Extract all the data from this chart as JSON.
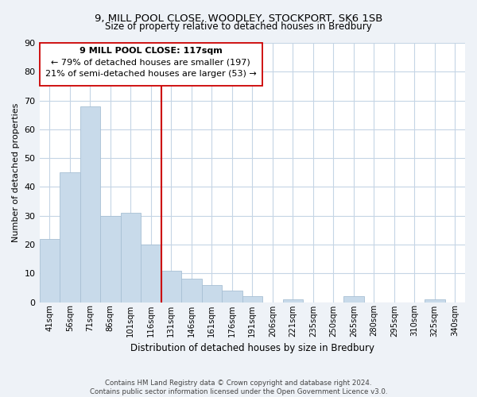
{
  "title": "9, MILL POOL CLOSE, WOODLEY, STOCKPORT, SK6 1SB",
  "subtitle": "Size of property relative to detached houses in Bredbury",
  "xlabel": "Distribution of detached houses by size in Bredbury",
  "ylabel": "Number of detached properties",
  "bar_labels": [
    "41sqm",
    "56sqm",
    "71sqm",
    "86sqm",
    "101sqm",
    "116sqm",
    "131sqm",
    "146sqm",
    "161sqm",
    "176sqm",
    "191sqm",
    "206sqm",
    "221sqm",
    "235sqm",
    "250sqm",
    "265sqm",
    "280sqm",
    "295sqm",
    "310sqm",
    "325sqm",
    "340sqm"
  ],
  "bar_values": [
    22,
    45,
    68,
    30,
    31,
    20,
    11,
    8,
    6,
    4,
    2,
    0,
    1,
    0,
    0,
    2,
    0,
    0,
    0,
    1,
    0
  ],
  "bar_color": "#c8daea",
  "bar_edge_color": "#a8c0d4",
  "vline_x": 5.5,
  "vline_color": "#cc0000",
  "ylim": [
    0,
    90
  ],
  "yticks": [
    0,
    10,
    20,
    30,
    40,
    50,
    60,
    70,
    80,
    90
  ],
  "annotation_box_text1": "9 MILL POOL CLOSE: 117sqm",
  "annotation_box_text2": "← 79% of detached houses are smaller (197)",
  "annotation_box_text3": "21% of semi-detached houses are larger (53) →",
  "footer_text": "Contains HM Land Registry data © Crown copyright and database right 2024.\nContains public sector information licensed under the Open Government Licence v3.0.",
  "background_color": "#eef2f7",
  "plot_background_color": "#ffffff",
  "grid_color": "#c5d5e5"
}
